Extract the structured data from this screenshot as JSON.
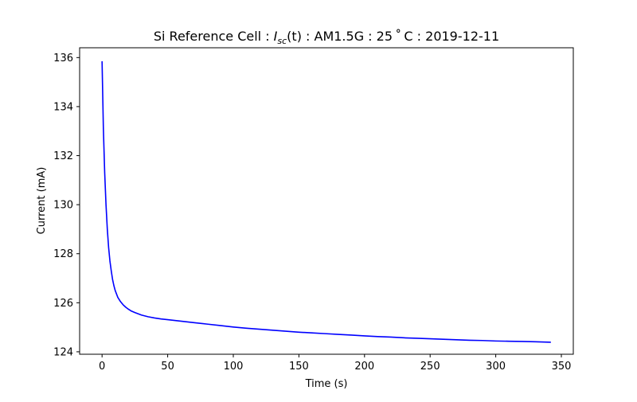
{
  "chart_data": {
    "type": "line",
    "title": {
      "prefix": "Si Reference Cell : ",
      "symbol": "I",
      "subscript": "sc",
      "arg": "(t)",
      "suffix": " : AM1.5G : 25 ˚ C : 2019-12-11"
    },
    "xlabel": "Time (s)",
    "ylabel": "Current (mA)",
    "xlim": [
      -17.1,
      359.1
    ],
    "ylim": [
      123.9,
      136.4
    ],
    "xticks": [
      0,
      50,
      100,
      150,
      200,
      250,
      300,
      350
    ],
    "yticks": [
      124,
      126,
      128,
      130,
      132,
      134,
      136
    ],
    "grid": false,
    "line_color": "#0000ff",
    "series": [
      {
        "x": [
          0,
          1,
          2,
          3,
          4,
          5,
          6,
          7,
          8,
          9,
          10,
          12,
          14,
          16,
          18,
          20,
          22,
          25,
          28,
          30,
          35,
          40,
          45,
          50,
          60,
          70,
          80,
          90,
          100,
          110,
          120,
          130,
          140,
          150,
          160,
          170,
          180,
          190,
          200,
          210,
          220,
          230,
          240,
          250,
          260,
          270,
          280,
          290,
          300,
          310,
          320,
          330,
          342
        ],
        "y": [
          135.85,
          133.1,
          131.3,
          130.0,
          129.0,
          128.25,
          127.7,
          127.3,
          126.95,
          126.7,
          126.5,
          126.22,
          126.05,
          125.92,
          125.82,
          125.74,
          125.67,
          125.6,
          125.54,
          125.5,
          125.43,
          125.38,
          125.34,
          125.31,
          125.25,
          125.19,
          125.13,
          125.07,
          125.01,
          124.96,
          124.92,
          124.88,
          124.84,
          124.8,
          124.77,
          124.74,
          124.71,
          124.68,
          124.65,
          124.62,
          124.6,
          124.57,
          124.55,
          124.53,
          124.51,
          124.49,
          124.47,
          124.46,
          124.44,
          124.43,
          124.42,
          124.41,
          124.39
        ]
      }
    ]
  }
}
